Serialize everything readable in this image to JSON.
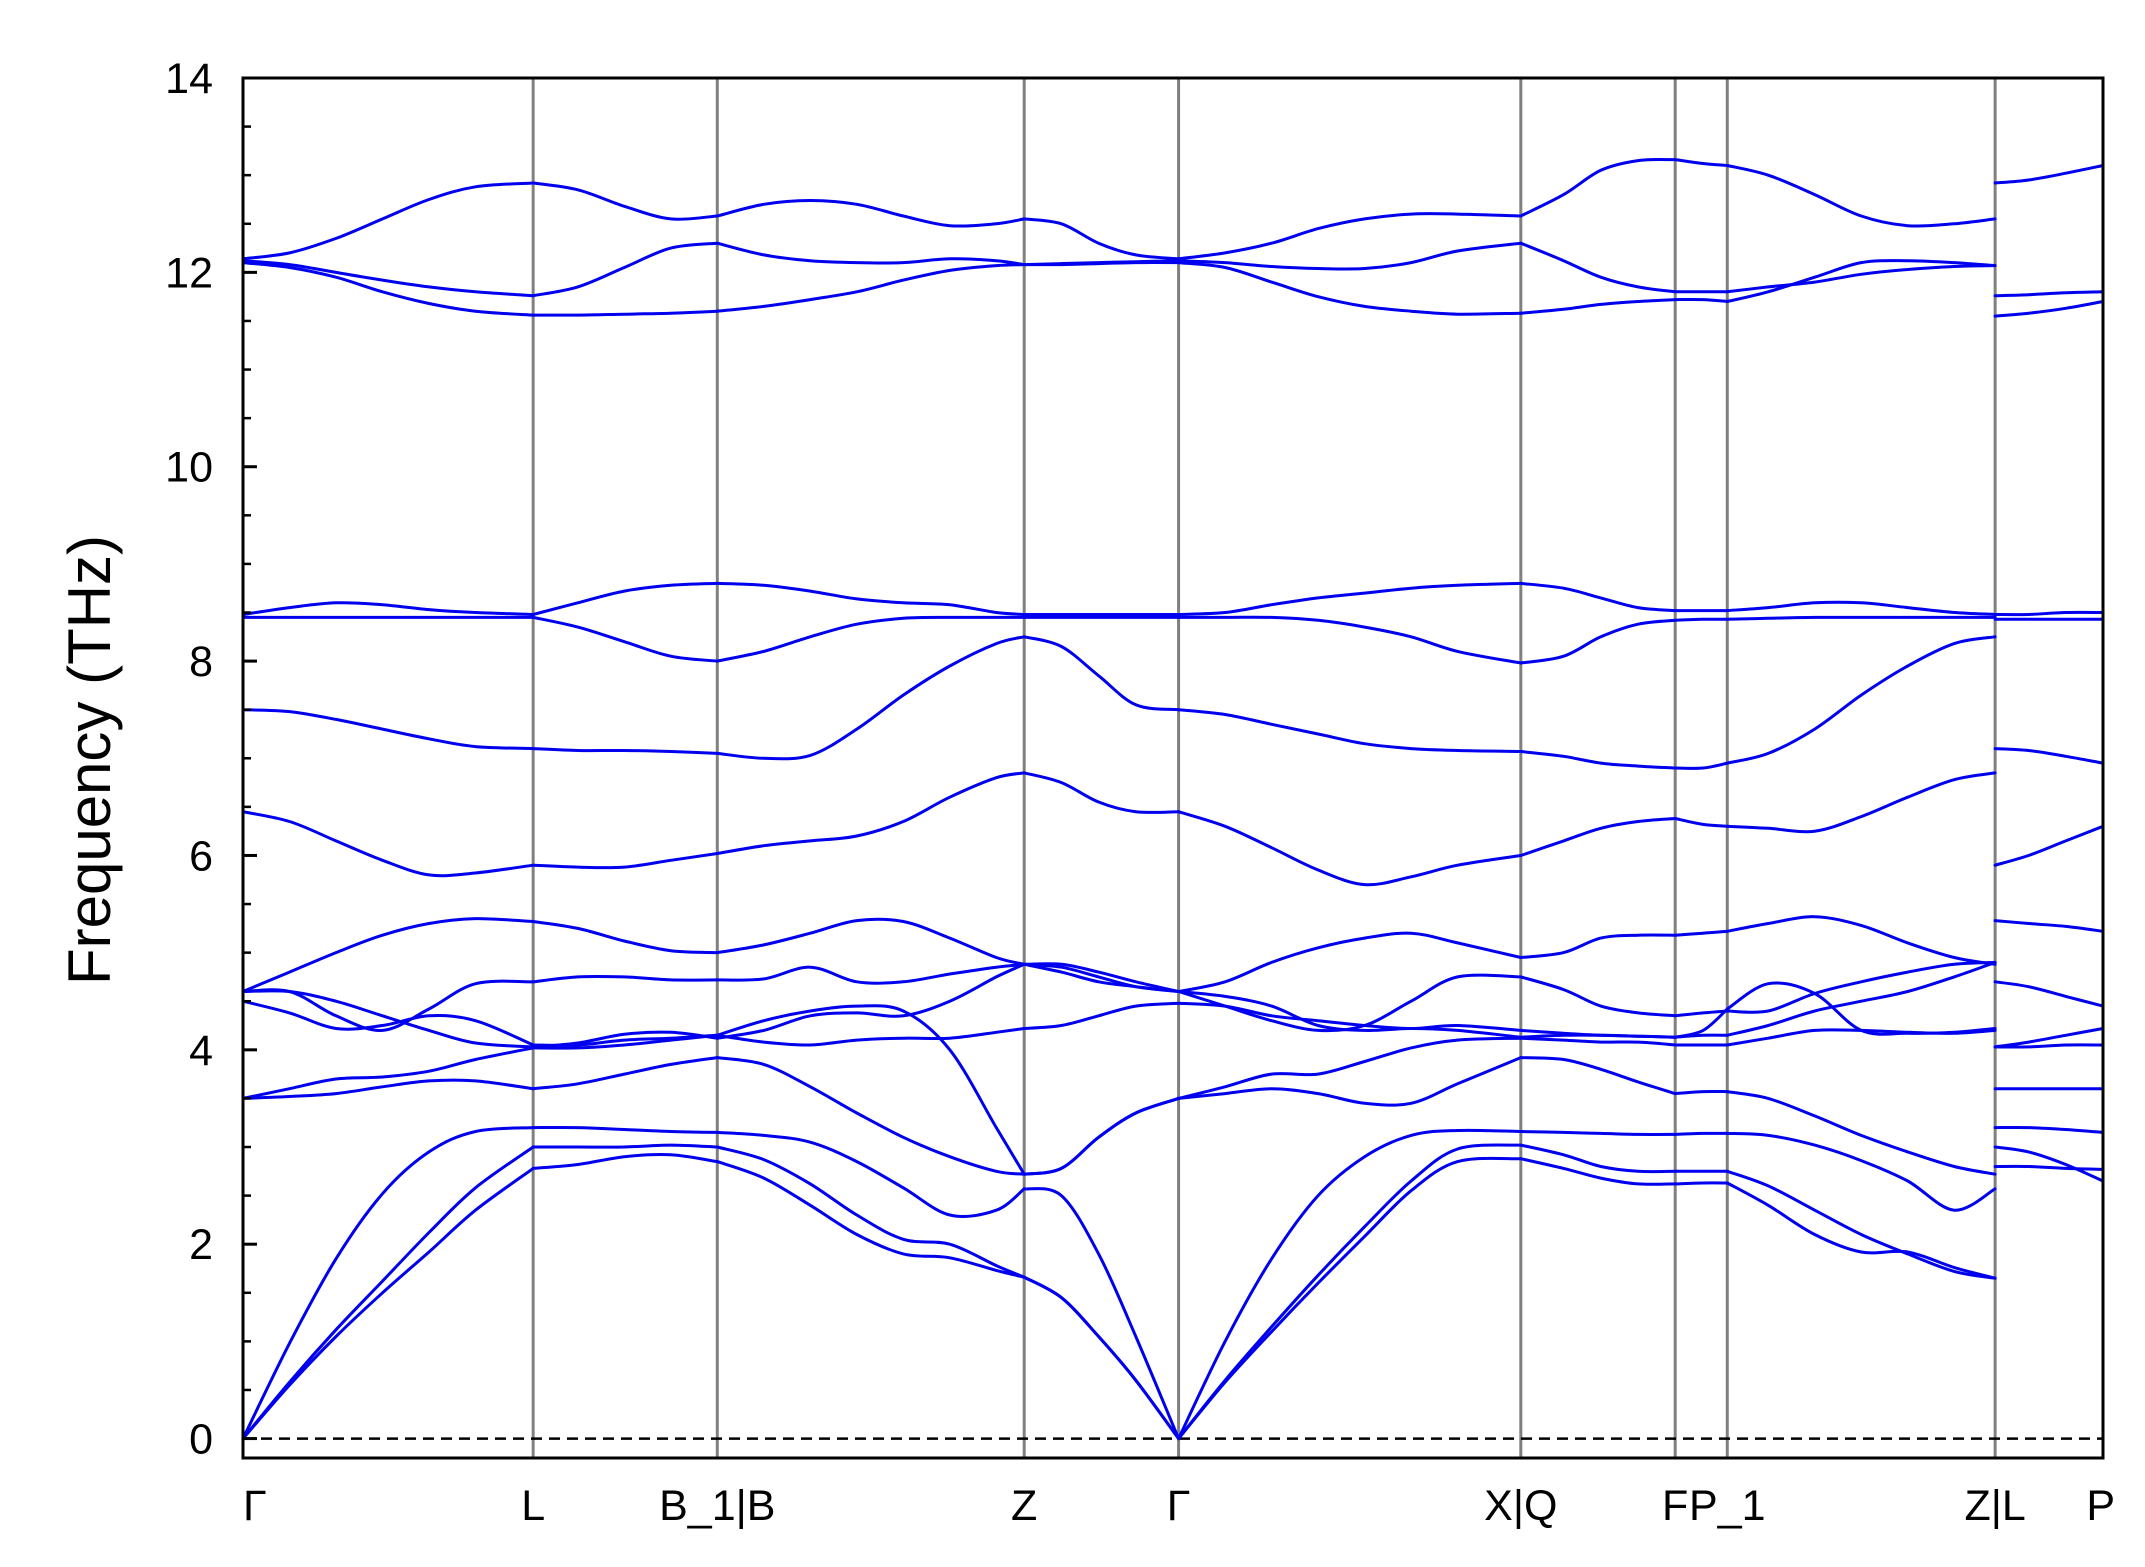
{
  "chart_data": {
    "type": "line",
    "title": "",
    "xlabel": "",
    "ylabel": "Frequency (THz)",
    "ylim": [
      -0.2,
      14
    ],
    "yticks": [
      0,
      2,
      4,
      6,
      8,
      10,
      12,
      14
    ],
    "grid": false,
    "legend": "none",
    "line_color": "#0000ee",
    "divider_color": "#808080",
    "zero_line": {
      "y": 0,
      "style": "dashed",
      "color": "#000000"
    },
    "path_ticks": [
      {
        "label": "Γ",
        "x": 0
      },
      {
        "label": "L",
        "x": 1.56
      },
      {
        "label": "B_1|B",
        "x": 2.55
      },
      {
        "label": "Z",
        "x": 4.2
      },
      {
        "label": "Γ",
        "x": 5.03
      },
      {
        "label": "X|Q",
        "x": 6.87
      },
      {
        "label": "F",
        "x": 7.7
      },
      {
        "label": "P_1",
        "x": 7.98
      },
      {
        "label": "Z|L",
        "x": 9.42
      },
      {
        "label": "P",
        "x": 10.0
      }
    ],
    "segments": [
      {
        "x": [
          0,
          0.25,
          0.5,
          0.75,
          1.0,
          1.25,
          1.56,
          1.8,
          2.05,
          2.3,
          2.55,
          2.8,
          3.05,
          3.3,
          3.55,
          3.8,
          4.05,
          4.2,
          4.4,
          4.6,
          4.8,
          5.03,
          5.28,
          5.53,
          5.78,
          6.03,
          6.28,
          6.53,
          6.87,
          7.1,
          7.3,
          7.5,
          7.7,
          7.85,
          7.98,
          8.2,
          8.45,
          8.7,
          8.95,
          9.2,
          9.42
        ],
        "series": [
          {
            "values": [
              0,
              0.55,
              1.05,
              1.5,
              1.92,
              2.35,
              2.78,
              2.82,
              2.9,
              2.92,
              2.85,
              2.68,
              2.4,
              2.1,
              1.9,
              1.86,
              1.73,
              1.66,
              1.45,
              1.05,
              0.6,
              0,
              0.58,
              1.1,
              1.6,
              2.08,
              2.55,
              2.85,
              2.88,
              2.78,
              2.68,
              2.62,
              2.62,
              2.63,
              2.63,
              2.4,
              2.1,
              1.92,
              1.92,
              1.76,
              1.65
            ]
          },
          {
            "values": [
              0,
              0.58,
              1.12,
              1.62,
              2.12,
              2.58,
              3.0,
              3.0,
              3.0,
              3.02,
              3.0,
              2.87,
              2.62,
              2.3,
              2.05,
              2.0,
              1.78,
              1.66,
              1.45,
              1.05,
              0.6,
              0,
              0.6,
              1.15,
              1.68,
              2.18,
              2.65,
              2.98,
              3.02,
              2.92,
              2.8,
              2.75,
              2.75,
              2.75,
              2.75,
              2.6,
              2.35,
              2.1,
              1.9,
              1.72,
              1.65
            ]
          },
          {
            "values": [
              0,
              0.98,
              1.85,
              2.52,
              2.95,
              3.16,
              3.2,
              3.2,
              3.18,
              3.16,
              3.15,
              3.12,
              3.05,
              2.85,
              2.58,
              2.3,
              2.35,
              2.57,
              2.5,
              1.9,
              1.05,
              0,
              1.0,
              1.85,
              2.5,
              2.9,
              3.12,
              3.17,
              3.16,
              3.15,
              3.14,
              3.13,
              3.13,
              3.14,
              3.14,
              3.12,
              3.02,
              2.86,
              2.65,
              2.35,
              2.57
            ]
          },
          {
            "values": [
              3.5,
              3.52,
              3.55,
              3.62,
              3.68,
              3.68,
              3.6,
              3.65,
              3.75,
              3.85,
              3.92,
              3.85,
              3.62,
              3.35,
              3.1,
              2.9,
              2.75,
              2.72,
              2.78,
              3.1,
              3.35,
              3.5,
              3.55,
              3.6,
              3.55,
              3.45,
              3.45,
              3.65,
              3.92,
              3.9,
              3.8,
              3.67,
              3.55,
              3.57,
              3.57,
              3.5,
              3.32,
              3.12,
              2.95,
              2.8,
              2.72
            ]
          },
          {
            "values": [
              3.5,
              3.6,
              3.7,
              3.72,
              3.78,
              3.9,
              4.02,
              4.02,
              4.05,
              4.1,
              4.15,
              4.3,
              4.4,
              4.45,
              4.4,
              4.0,
              3.2,
              2.72,
              2.78,
              3.1,
              3.35,
              3.5,
              3.62,
              3.75,
              3.75,
              3.88,
              4.02,
              4.1,
              4.12,
              4.1,
              4.08,
              4.08,
              4.05,
              4.05,
              4.05,
              4.12,
              4.2,
              4.2,
              4.18,
              4.17,
              4.2
            ]
          },
          {
            "values": [
              4.5,
              4.38,
              4.22,
              4.25,
              4.35,
              4.3,
              4.05,
              4.05,
              4.1,
              4.12,
              4.15,
              4.08,
              4.05,
              4.1,
              4.12,
              4.12,
              4.18,
              4.22,
              4.25,
              4.35,
              4.45,
              4.48,
              4.45,
              4.35,
              4.3,
              4.25,
              4.22,
              4.25,
              4.2,
              4.17,
              4.15,
              4.14,
              4.13,
              4.15,
              4.15,
              4.25,
              4.4,
              4.5,
              4.6,
              4.75,
              4.9
            ]
          },
          {
            "values": [
              4.6,
              4.6,
              4.5,
              4.35,
              4.2,
              4.07,
              4.03,
              4.07,
              4.16,
              4.18,
              4.12,
              4.2,
              4.35,
              4.38,
              4.35,
              4.5,
              4.75,
              4.88,
              4.8,
              4.7,
              4.65,
              4.6,
              4.55,
              4.45,
              4.25,
              4.2,
              4.22,
              4.2,
              4.13,
              4.15,
              4.15,
              4.14,
              4.13,
              4.2,
              4.42,
              4.68,
              4.58,
              4.2,
              4.17,
              4.18,
              4.22
            ]
          },
          {
            "values": [
              4.6,
              4.6,
              4.35,
              4.2,
              4.42,
              4.68,
              4.7,
              4.75,
              4.75,
              4.72,
              4.72,
              4.73,
              4.85,
              4.7,
              4.7,
              4.78,
              4.85,
              4.88,
              4.85,
              4.75,
              4.65,
              4.6,
              4.45,
              4.3,
              4.2,
              4.25,
              4.5,
              4.75,
              4.75,
              4.62,
              4.45,
              4.38,
              4.35,
              4.38,
              4.4,
              4.4,
              4.58,
              4.7,
              4.8,
              4.88,
              4.9
            ]
          },
          {
            "values": [
              4.6,
              4.8,
              5.0,
              5.18,
              5.3,
              5.35,
              5.32,
              5.25,
              5.12,
              5.02,
              5.0,
              5.08,
              5.2,
              5.33,
              5.32,
              5.15,
              4.95,
              4.88,
              4.88,
              4.8,
              4.7,
              4.6,
              4.7,
              4.9,
              5.05,
              5.15,
              5.2,
              5.1,
              4.95,
              5.0,
              5.15,
              5.18,
              5.18,
              5.2,
              5.22,
              5.3,
              5.37,
              5.28,
              5.1,
              4.95,
              4.88
            ]
          },
          {
            "values": [
              6.45,
              6.35,
              6.15,
              5.95,
              5.8,
              5.82,
              5.9,
              5.88,
              5.88,
              5.95,
              6.02,
              6.1,
              6.15,
              6.2,
              6.35,
              6.6,
              6.8,
              6.85,
              6.75,
              6.55,
              6.45,
              6.45,
              6.3,
              6.08,
              5.85,
              5.7,
              5.78,
              5.9,
              6.0,
              6.15,
              6.28,
              6.35,
              6.38,
              6.32,
              6.3,
              6.28,
              6.25,
              6.4,
              6.6,
              6.78,
              6.85
            ]
          },
          {
            "values": [
              7.5,
              7.48,
              7.4,
              7.3,
              7.2,
              7.12,
              7.1,
              7.08,
              7.08,
              7.07,
              7.05,
              7.0,
              7.03,
              7.3,
              7.65,
              7.95,
              8.18,
              8.25,
              8.15,
              7.85,
              7.55,
              7.5,
              7.45,
              7.35,
              7.25,
              7.15,
              7.1,
              7.08,
              7.07,
              7.02,
              6.95,
              6.92,
              6.9,
              6.9,
              6.95,
              7.05,
              7.3,
              7.65,
              7.95,
              8.18,
              8.25
            ]
          },
          {
            "values": [
              8.45,
              8.45,
              8.45,
              8.45,
              8.45,
              8.45,
              8.45,
              8.35,
              8.2,
              8.05,
              8.0,
              8.1,
              8.25,
              8.38,
              8.44,
              8.45,
              8.45,
              8.45,
              8.45,
              8.45,
              8.45,
              8.45,
              8.45,
              8.45,
              8.42,
              8.35,
              8.25,
              8.1,
              7.98,
              8.05,
              8.25,
              8.38,
              8.42,
              8.43,
              8.43,
              8.44,
              8.45,
              8.45,
              8.45,
              8.45,
              8.45
            ]
          },
          {
            "values": [
              8.48,
              8.55,
              8.6,
              8.58,
              8.53,
              8.5,
              8.48,
              8.6,
              8.72,
              8.78,
              8.8,
              8.78,
              8.72,
              8.64,
              8.6,
              8.58,
              8.5,
              8.48,
              8.48,
              8.48,
              8.48,
              8.48,
              8.5,
              8.58,
              8.65,
              8.7,
              8.75,
              8.78,
              8.8,
              8.75,
              8.65,
              8.55,
              8.52,
              8.52,
              8.52,
              8.55,
              8.6,
              8.6,
              8.55,
              8.5,
              8.48
            ]
          },
          {
            "values": [
              12.1,
              12.05,
              11.95,
              11.8,
              11.68,
              11.6,
              11.56,
              11.56,
              11.57,
              11.58,
              11.6,
              11.65,
              11.72,
              11.8,
              11.92,
              12.02,
              12.07,
              12.08,
              12.08,
              12.09,
              12.1,
              12.1,
              12.05,
              11.9,
              11.75,
              11.65,
              11.6,
              11.57,
              11.58,
              11.62,
              11.67,
              11.7,
              11.72,
              11.72,
              11.7,
              11.8,
              11.95,
              12.1,
              12.12,
              12.1,
              12.07
            ]
          },
          {
            "values": [
              12.12,
              12.08,
              12.0,
              11.92,
              11.85,
              11.8,
              11.76,
              11.85,
              12.05,
              12.25,
              12.3,
              12.18,
              12.12,
              12.1,
              12.1,
              12.14,
              12.12,
              12.08,
              12.09,
              12.1,
              12.11,
              12.12,
              12.1,
              12.06,
              12.04,
              12.04,
              12.1,
              12.22,
              12.3,
              12.12,
              11.95,
              11.85,
              11.8,
              11.8,
              11.8,
              11.85,
              11.9,
              11.98,
              12.03,
              12.06,
              12.07
            ]
          },
          {
            "values": [
              12.14,
              12.2,
              12.35,
              12.55,
              12.75,
              12.88,
              12.92,
              12.85,
              12.68,
              12.55,
              12.58,
              12.7,
              12.74,
              12.7,
              12.58,
              12.48,
              12.5,
              12.55,
              12.5,
              12.3,
              12.18,
              12.14,
              12.2,
              12.3,
              12.45,
              12.55,
              12.6,
              12.6,
              12.58,
              12.8,
              13.05,
              13.15,
              13.16,
              13.12,
              13.1,
              13.0,
              12.8,
              12.58,
              12.48,
              12.5,
              12.55
            ]
          }
        ]
      },
      {
        "x": [
          9.42,
          9.6,
          9.8,
          10.0
        ],
        "series": [
          {
            "values": [
              2.8,
              2.8,
              2.78,
              2.77
            ]
          },
          {
            "values": [
              3.0,
              2.95,
              2.82,
              2.65
            ]
          },
          {
            "values": [
              3.2,
              3.2,
              3.18,
              3.15
            ]
          },
          {
            "values": [
              3.6,
              3.6,
              3.6,
              3.6
            ]
          },
          {
            "values": [
              4.03,
              4.03,
              4.05,
              4.05
            ]
          },
          {
            "values": [
              4.03,
              4.08,
              4.15,
              4.22
            ]
          },
          {
            "values": [
              4.7,
              4.65,
              4.55,
              4.45
            ]
          },
          {
            "values": [
              5.33,
              5.3,
              5.27,
              5.22
            ]
          },
          {
            "values": [
              5.9,
              6.0,
              6.15,
              6.3
            ]
          },
          {
            "values": [
              7.1,
              7.08,
              7.02,
              6.95
            ]
          },
          {
            "values": [
              8.43,
              8.43,
              8.43,
              8.43
            ]
          },
          {
            "values": [
              8.48,
              8.48,
              8.5,
              8.5
            ]
          },
          {
            "values": [
              11.55,
              11.58,
              11.63,
              11.7
            ]
          },
          {
            "values": [
              11.76,
              11.77,
              11.79,
              11.8
            ]
          },
          {
            "values": [
              12.92,
              12.95,
              13.02,
              13.1
            ]
          }
        ]
      }
    ]
  }
}
